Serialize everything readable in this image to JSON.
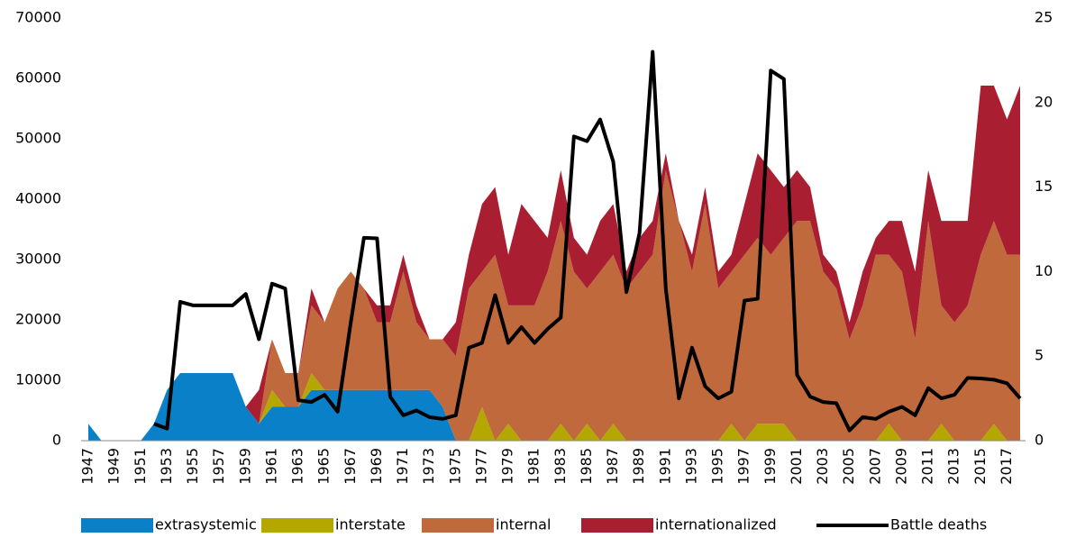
{
  "chart_data": {
    "type": "stacked_area_line",
    "categories": [
      "1947",
      null,
      "1949",
      null,
      "1951",
      null,
      "1953",
      null,
      "1955",
      null,
      "1957",
      null,
      "1959",
      null,
      "1961",
      null,
      "1963",
      null,
      "1965",
      null,
      "1967",
      null,
      "1969",
      null,
      "1971",
      null,
      "1973",
      null,
      "1975",
      null,
      "1977",
      null,
      "1979",
      null,
      "1981",
      null,
      "1983",
      null,
      "1985",
      null,
      "1987",
      null,
      "1989",
      null,
      "1991",
      null,
      "1993",
      null,
      "1995",
      null,
      "1997",
      null,
      "1999",
      null,
      "2001",
      null,
      "2003",
      null,
      "2005",
      null,
      "2007",
      null,
      "2009",
      null,
      "2011",
      null,
      "2013",
      null,
      "2015",
      null,
      "2017",
      null
    ],
    "series": [
      {
        "name": "extrasystemic",
        "color": "#0a80c8",
        "axis": "y2",
        "values": [
          1,
          0,
          0,
          0,
          0,
          1,
          3,
          4,
          4,
          4,
          4,
          4,
          2,
          1,
          2,
          2,
          2,
          3,
          3,
          3,
          3,
          3,
          3,
          3,
          3,
          3,
          3,
          2,
          0,
          0,
          0,
          0,
          0,
          0,
          0,
          0,
          0,
          0,
          0,
          0,
          0,
          0,
          0,
          0,
          0,
          0,
          0,
          0,
          0,
          0,
          0,
          0,
          0,
          0,
          0,
          0,
          0,
          0,
          0,
          0,
          0,
          0,
          0,
          0,
          0,
          0,
          0,
          0,
          0,
          0,
          0,
          0
        ]
      },
      {
        "name": "interstate",
        "color": "#b4a800",
        "axis": "y2",
        "values": [
          0,
          0,
          0,
          0,
          0,
          0,
          0,
          0,
          0,
          0,
          0,
          0,
          0,
          0,
          1,
          0,
          0,
          1,
          0,
          0,
          0,
          0,
          0,
          0,
          0,
          0,
          0,
          0,
          0,
          0,
          2,
          0,
          1,
          0,
          0,
          0,
          1,
          0,
          1,
          0,
          1,
          0,
          0,
          0,
          0,
          0,
          0,
          0,
          0,
          1,
          0,
          1,
          1,
          1,
          0,
          0,
          0,
          0,
          0,
          0,
          0,
          1,
          0,
          0,
          0,
          1,
          0,
          0,
          0,
          1,
          0,
          0
        ]
      },
      {
        "name": "internal",
        "color": "#c0693c",
        "axis": "y2",
        "values": [
          0,
          0,
          0,
          0,
          0,
          0,
          0,
          0,
          0,
          0,
          0,
          0,
          0,
          0,
          3,
          2,
          2,
          4,
          4,
          6,
          7,
          6,
          4,
          4,
          7,
          4,
          3,
          4,
          5,
          9,
          8,
          11,
          7,
          8,
          8,
          10,
          12,
          10,
          8,
          10,
          10,
          9,
          10,
          11,
          16,
          13,
          10,
          14,
          9,
          9,
          11,
          11,
          10,
          11,
          13,
          13,
          10,
          9,
          6,
          8,
          11,
          10,
          10,
          6,
          13,
          7,
          7,
          8,
          11,
          12,
          11,
          11
        ]
      },
      {
        "name": "internationalized",
        "color": "#aa1e32",
        "axis": "y2",
        "values": [
          0,
          0,
          0,
          0,
          0,
          0,
          0,
          0,
          0,
          0,
          0,
          0,
          0,
          2,
          0,
          0,
          0,
          1,
          0,
          0,
          0,
          0,
          1,
          1,
          1,
          1,
          0,
          0,
          2,
          2,
          4,
          4,
          3,
          6,
          5,
          2,
          3,
          2,
          2,
          3,
          3,
          1,
          2,
          2,
          1,
          0,
          1,
          1,
          1,
          1,
          3,
          5,
          5,
          3,
          3,
          2,
          1,
          1,
          1,
          2,
          1,
          2,
          3,
          4,
          3,
          5,
          6,
          5,
          10,
          8,
          8,
          10
        ]
      },
      {
        "name": "Battle deaths",
        "color": "#000000",
        "axis": "y",
        "values": [
          null,
          null,
          null,
          null,
          null,
          2800,
          2000,
          23000,
          22400,
          22400,
          22400,
          22400,
          24300,
          16800,
          26000,
          25200,
          6700,
          6400,
          7600,
          4800,
          19600,
          33600,
          33500,
          7300,
          4200,
          5000,
          3900,
          3600,
          4200,
          15400,
          16200,
          24100,
          16200,
          18800,
          16200,
          18500,
          20400,
          50400,
          49600,
          53200,
          46200,
          24600,
          34400,
          64400,
          25200,
          7000,
          15400,
          9000,
          7000,
          8100,
          23200,
          23500,
          61300,
          59900,
          10900,
          7300,
          6400,
          6200,
          1700,
          3900,
          3600,
          4800,
          5600,
          4200,
          8700,
          7000,
          7600,
          10400,
          10300,
          10100,
          9500,
          7000
        ]
      }
    ],
    "ylim": [
      0,
      70000
    ],
    "yticks": [
      0,
      10000,
      20000,
      30000,
      40000,
      50000,
      60000,
      70000
    ],
    "y2lim": [
      0,
      25
    ],
    "y2ticks": [
      0,
      5,
      10,
      15,
      20,
      25
    ],
    "grid": false,
    "legend": "bottom"
  }
}
